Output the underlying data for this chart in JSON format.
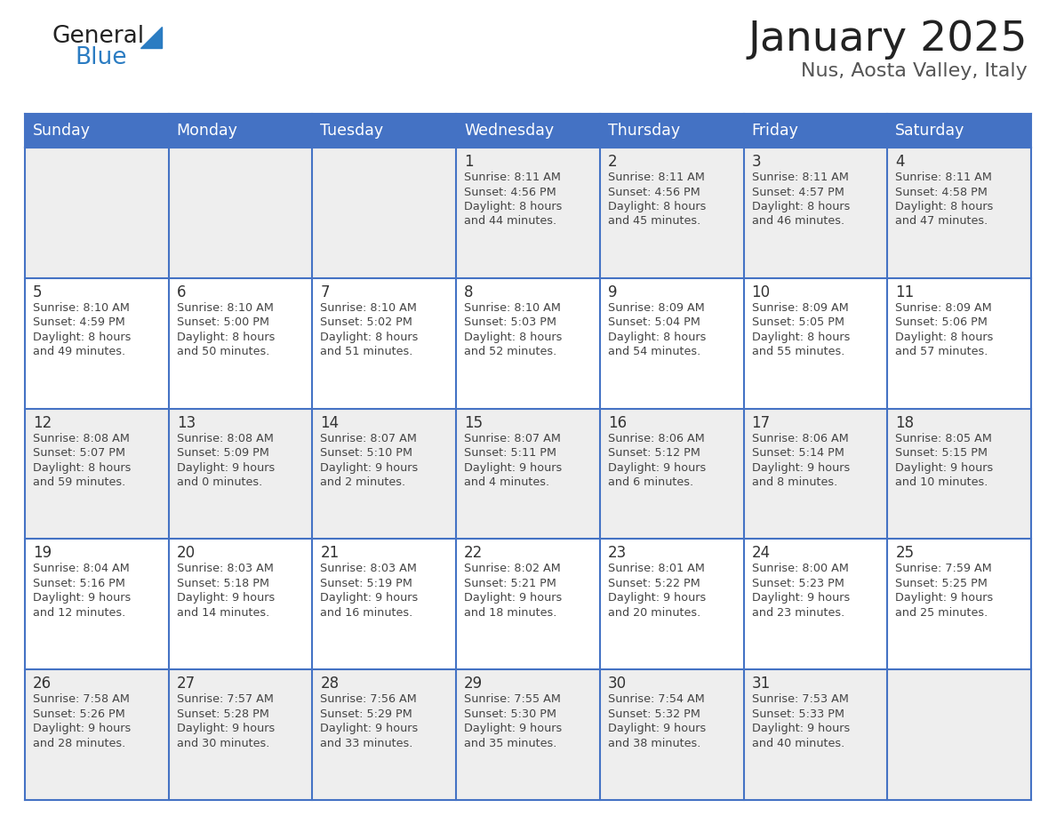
{
  "title": "January 2025",
  "subtitle": "Nus, Aosta Valley, Italy",
  "days_of_week": [
    "Sunday",
    "Monday",
    "Tuesday",
    "Wednesday",
    "Thursday",
    "Friday",
    "Saturday"
  ],
  "header_bg_color": "#4472C4",
  "header_text_color": "#FFFFFF",
  "row_bg_colors": [
    "#EEEEEE",
    "#FFFFFF",
    "#EEEEEE",
    "#FFFFFF",
    "#EEEEEE"
  ],
  "day_num_color": "#333333",
  "cell_text_color": "#444444",
  "grid_line_color": "#4472C4",
  "title_color": "#222222",
  "subtitle_color": "#555555",
  "logo_general_color": "#222222",
  "logo_blue_color": "#2B7CC2",
  "weeks": [
    [
      {
        "day": null,
        "sunrise": null,
        "sunset": null,
        "daylight": null
      },
      {
        "day": null,
        "sunrise": null,
        "sunset": null,
        "daylight": null
      },
      {
        "day": null,
        "sunrise": null,
        "sunset": null,
        "daylight": null
      },
      {
        "day": 1,
        "sunrise": "8:11 AM",
        "sunset": "4:56 PM",
        "daylight_l1": "Daylight: 8 hours",
        "daylight_l2": "and 44 minutes."
      },
      {
        "day": 2,
        "sunrise": "8:11 AM",
        "sunset": "4:56 PM",
        "daylight_l1": "Daylight: 8 hours",
        "daylight_l2": "and 45 minutes."
      },
      {
        "day": 3,
        "sunrise": "8:11 AM",
        "sunset": "4:57 PM",
        "daylight_l1": "Daylight: 8 hours",
        "daylight_l2": "and 46 minutes."
      },
      {
        "day": 4,
        "sunrise": "8:11 AM",
        "sunset": "4:58 PM",
        "daylight_l1": "Daylight: 8 hours",
        "daylight_l2": "and 47 minutes."
      }
    ],
    [
      {
        "day": 5,
        "sunrise": "8:10 AM",
        "sunset": "4:59 PM",
        "daylight_l1": "Daylight: 8 hours",
        "daylight_l2": "and 49 minutes."
      },
      {
        "day": 6,
        "sunrise": "8:10 AM",
        "sunset": "5:00 PM",
        "daylight_l1": "Daylight: 8 hours",
        "daylight_l2": "and 50 minutes."
      },
      {
        "day": 7,
        "sunrise": "8:10 AM",
        "sunset": "5:02 PM",
        "daylight_l1": "Daylight: 8 hours",
        "daylight_l2": "and 51 minutes."
      },
      {
        "day": 8,
        "sunrise": "8:10 AM",
        "sunset": "5:03 PM",
        "daylight_l1": "Daylight: 8 hours",
        "daylight_l2": "and 52 minutes."
      },
      {
        "day": 9,
        "sunrise": "8:09 AM",
        "sunset": "5:04 PM",
        "daylight_l1": "Daylight: 8 hours",
        "daylight_l2": "and 54 minutes."
      },
      {
        "day": 10,
        "sunrise": "8:09 AM",
        "sunset": "5:05 PM",
        "daylight_l1": "Daylight: 8 hours",
        "daylight_l2": "and 55 minutes."
      },
      {
        "day": 11,
        "sunrise": "8:09 AM",
        "sunset": "5:06 PM",
        "daylight_l1": "Daylight: 8 hours",
        "daylight_l2": "and 57 minutes."
      }
    ],
    [
      {
        "day": 12,
        "sunrise": "8:08 AM",
        "sunset": "5:07 PM",
        "daylight_l1": "Daylight: 8 hours",
        "daylight_l2": "and 59 minutes."
      },
      {
        "day": 13,
        "sunrise": "8:08 AM",
        "sunset": "5:09 PM",
        "daylight_l1": "Daylight: 9 hours",
        "daylight_l2": "and 0 minutes."
      },
      {
        "day": 14,
        "sunrise": "8:07 AM",
        "sunset": "5:10 PM",
        "daylight_l1": "Daylight: 9 hours",
        "daylight_l2": "and 2 minutes."
      },
      {
        "day": 15,
        "sunrise": "8:07 AM",
        "sunset": "5:11 PM",
        "daylight_l1": "Daylight: 9 hours",
        "daylight_l2": "and 4 minutes."
      },
      {
        "day": 16,
        "sunrise": "8:06 AM",
        "sunset": "5:12 PM",
        "daylight_l1": "Daylight: 9 hours",
        "daylight_l2": "and 6 minutes."
      },
      {
        "day": 17,
        "sunrise": "8:06 AM",
        "sunset": "5:14 PM",
        "daylight_l1": "Daylight: 9 hours",
        "daylight_l2": "and 8 minutes."
      },
      {
        "day": 18,
        "sunrise": "8:05 AM",
        "sunset": "5:15 PM",
        "daylight_l1": "Daylight: 9 hours",
        "daylight_l2": "and 10 minutes."
      }
    ],
    [
      {
        "day": 19,
        "sunrise": "8:04 AM",
        "sunset": "5:16 PM",
        "daylight_l1": "Daylight: 9 hours",
        "daylight_l2": "and 12 minutes."
      },
      {
        "day": 20,
        "sunrise": "8:03 AM",
        "sunset": "5:18 PM",
        "daylight_l1": "Daylight: 9 hours",
        "daylight_l2": "and 14 minutes."
      },
      {
        "day": 21,
        "sunrise": "8:03 AM",
        "sunset": "5:19 PM",
        "daylight_l1": "Daylight: 9 hours",
        "daylight_l2": "and 16 minutes."
      },
      {
        "day": 22,
        "sunrise": "8:02 AM",
        "sunset": "5:21 PM",
        "daylight_l1": "Daylight: 9 hours",
        "daylight_l2": "and 18 minutes."
      },
      {
        "day": 23,
        "sunrise": "8:01 AM",
        "sunset": "5:22 PM",
        "daylight_l1": "Daylight: 9 hours",
        "daylight_l2": "and 20 minutes."
      },
      {
        "day": 24,
        "sunrise": "8:00 AM",
        "sunset": "5:23 PM",
        "daylight_l1": "Daylight: 9 hours",
        "daylight_l2": "and 23 minutes."
      },
      {
        "day": 25,
        "sunrise": "7:59 AM",
        "sunset": "5:25 PM",
        "daylight_l1": "Daylight: 9 hours",
        "daylight_l2": "and 25 minutes."
      }
    ],
    [
      {
        "day": 26,
        "sunrise": "7:58 AM",
        "sunset": "5:26 PM",
        "daylight_l1": "Daylight: 9 hours",
        "daylight_l2": "and 28 minutes."
      },
      {
        "day": 27,
        "sunrise": "7:57 AM",
        "sunset": "5:28 PM",
        "daylight_l1": "Daylight: 9 hours",
        "daylight_l2": "and 30 minutes."
      },
      {
        "day": 28,
        "sunrise": "7:56 AM",
        "sunset": "5:29 PM",
        "daylight_l1": "Daylight: 9 hours",
        "daylight_l2": "and 33 minutes."
      },
      {
        "day": 29,
        "sunrise": "7:55 AM",
        "sunset": "5:30 PM",
        "daylight_l1": "Daylight: 9 hours",
        "daylight_l2": "and 35 minutes."
      },
      {
        "day": 30,
        "sunrise": "7:54 AM",
        "sunset": "5:32 PM",
        "daylight_l1": "Daylight: 9 hours",
        "daylight_l2": "and 38 minutes."
      },
      {
        "day": 31,
        "sunrise": "7:53 AM",
        "sunset": "5:33 PM",
        "daylight_l1": "Daylight: 9 hours",
        "daylight_l2": "and 40 minutes."
      },
      {
        "day": null,
        "sunrise": null,
        "sunset": null,
        "daylight_l1": null,
        "daylight_l2": null
      }
    ]
  ]
}
